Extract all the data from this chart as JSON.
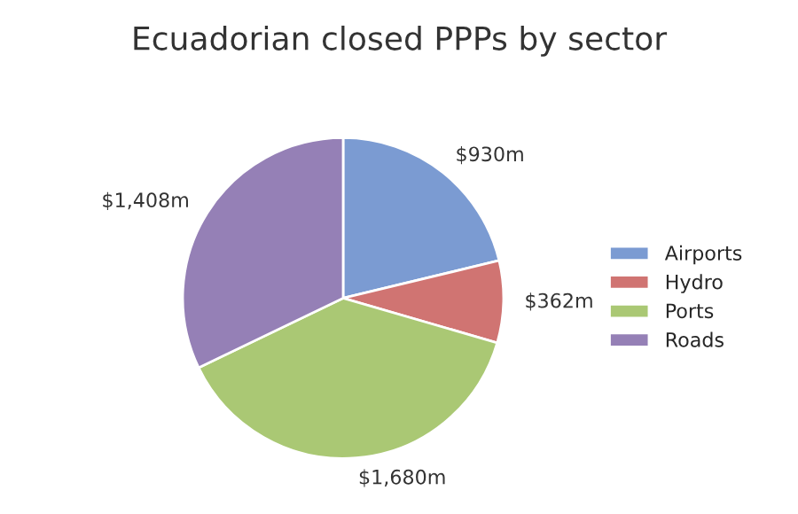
{
  "chart_data": {
    "type": "pie",
    "title": "Ecuadorian closed PPPs by sector",
    "categories": [
      "Airports",
      "Hydro",
      "Ports",
      "Roads"
    ],
    "values": [
      930,
      362,
      1680,
      1408
    ],
    "value_labels": [
      "$930m",
      "$362m",
      "$1,680m",
      "$1,408m"
    ],
    "colors": [
      "#7b9bd2",
      "#d07472",
      "#aac874",
      "#9580b6"
    ],
    "legend": "right"
  }
}
